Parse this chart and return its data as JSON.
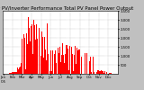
{
  "title": "Solar PV/Inverter Performance Total PV Panel Power Output",
  "bar_color": "#FF0000",
  "bg_color": "#C0C0C0",
  "plot_bg_color": "#FFFFFF",
  "grid_color": "#888888",
  "ylim": [
    0,
    3500
  ],
  "yticks": [
    500,
    1000,
    1500,
    2000,
    2500,
    3000,
    3500
  ],
  "ytick_labels": [
    "500",
    "1,000",
    "1,500",
    "2,000",
    "2,500",
    "3,000",
    "3,500"
  ],
  "num_bars": 365,
  "title_fontsize": 4.0,
  "tick_fontsize": 2.8,
  "figsize": [
    1.6,
    1.0
  ],
  "dpi": 100
}
